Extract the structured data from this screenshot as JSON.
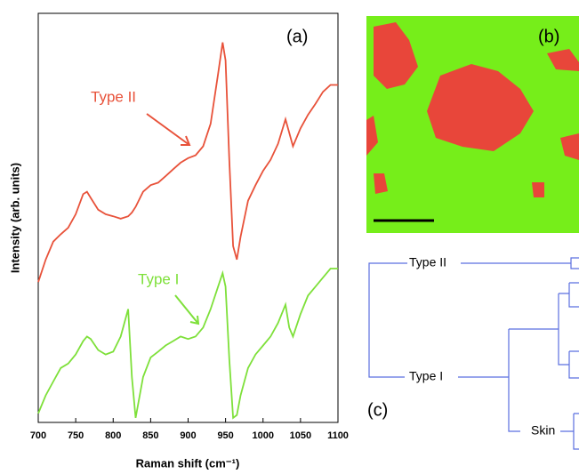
{
  "chart_data": {
    "type": "line",
    "xlabel": "Raman shift (cm⁻¹)",
    "ylabel": "Intensity (arb. units)",
    "annotations": [
      "(a)",
      "Type II",
      "Type I"
    ],
    "x": [
      700,
      710,
      720,
      730,
      740,
      750,
      760,
      765,
      770,
      780,
      790,
      800,
      810,
      820,
      825,
      830,
      840,
      850,
      860,
      870,
      880,
      890,
      900,
      910,
      920,
      930,
      940,
      946,
      950,
      955,
      960,
      965,
      970,
      980,
      990,
      1000,
      1010,
      1020,
      1030,
      1035,
      1040,
      1050,
      1060,
      1070,
      1080,
      1090,
      1100
    ],
    "series": [
      {
        "name": "Type II",
        "color": "#e8523a",
        "values": [
          3.43,
          3.98,
          4.42,
          4.6,
          4.76,
          5.09,
          5.58,
          5.64,
          5.49,
          5.2,
          5.09,
          5.04,
          4.98,
          5.04,
          5.13,
          5.27,
          5.64,
          5.8,
          5.86,
          6.02,
          6.19,
          6.35,
          6.46,
          6.53,
          6.75,
          7.3,
          8.52,
          9.29,
          8.85,
          6.42,
          4.31,
          3.98,
          4.54,
          5.42,
          5.8,
          6.15,
          6.42,
          6.81,
          7.41,
          7.08,
          6.75,
          7.19,
          7.52,
          7.79,
          8.08,
          8.25,
          8.25
        ]
      },
      {
        "name": "Type I",
        "color": "#7ee03a",
        "values": [
          0.22,
          0.66,
          1.0,
          1.33,
          1.44,
          1.66,
          1.99,
          2.1,
          2.04,
          1.77,
          1.66,
          1.73,
          2.1,
          2.77,
          1.11,
          0.11,
          1.11,
          1.59,
          1.73,
          1.88,
          1.99,
          2.1,
          2.04,
          2.1,
          2.32,
          2.77,
          3.32,
          3.65,
          3.32,
          1.55,
          0.11,
          0.18,
          0.66,
          1.33,
          1.66,
          1.88,
          2.1,
          2.43,
          2.88,
          2.32,
          2.1,
          2.65,
          3.1,
          3.32,
          3.54,
          3.76,
          3.76
        ]
      }
    ],
    "xlim": [
      700,
      1100
    ],
    "xticks": [
      700,
      750,
      800,
      850,
      900,
      950,
      1000,
      1050,
      1100
    ],
    "ylim": [
      0,
      10
    ]
  },
  "panel_b": {
    "label": "(b)"
  },
  "panel_c": {
    "label": "(c)",
    "leaves": [
      "Type II",
      "Type I",
      "Skin"
    ]
  }
}
